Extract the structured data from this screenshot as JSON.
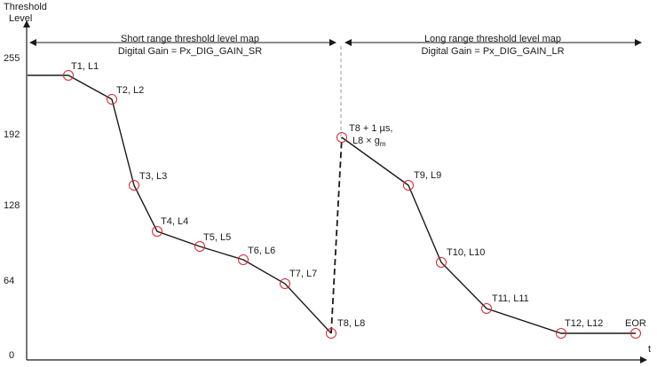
{
  "diagram": {
    "y_axis_title_line1": "Threshold",
    "y_axis_title_line2": "Level",
    "x_axis_title": "t",
    "y_ticks": [
      "255",
      "192",
      "128",
      "64",
      "0"
    ],
    "sections": {
      "short_range": {
        "title": "Short range threshold level map",
        "gain": "Digital Gain = Px_DIG_GAIN_SR"
      },
      "long_range": {
        "title": "Long range threshold level map",
        "gain": "Digital Gain = Px_DIG_GAIN_LR"
      }
    },
    "points": [
      {
        "id": "T1",
        "label": "T1, L1"
      },
      {
        "id": "T2",
        "label": "T2, L2"
      },
      {
        "id": "T3",
        "label": "T3, L3"
      },
      {
        "id": "T4",
        "label": "T4, L4"
      },
      {
        "id": "T5",
        "label": "T5, L5"
      },
      {
        "id": "T6",
        "label": "T6, L6"
      },
      {
        "id": "T7",
        "label": "T7, L7"
      },
      {
        "id": "T8",
        "label": "T8, L8"
      },
      {
        "id": "T8b",
        "label_line1": "T8 + 1 µs,",
        "label_line2": "L8 × g",
        "label_sub": "m"
      },
      {
        "id": "T9",
        "label": "T9, L9"
      },
      {
        "id": "T10",
        "label": "T10, L10"
      },
      {
        "id": "T11",
        "label": "T11, L11"
      },
      {
        "id": "T12",
        "label": "T12, L12"
      },
      {
        "id": "EOR",
        "label": "EOR"
      }
    ],
    "colors": {
      "line": "#1a1a1a",
      "marker": "#d9262f",
      "divider": "#999999"
    }
  }
}
